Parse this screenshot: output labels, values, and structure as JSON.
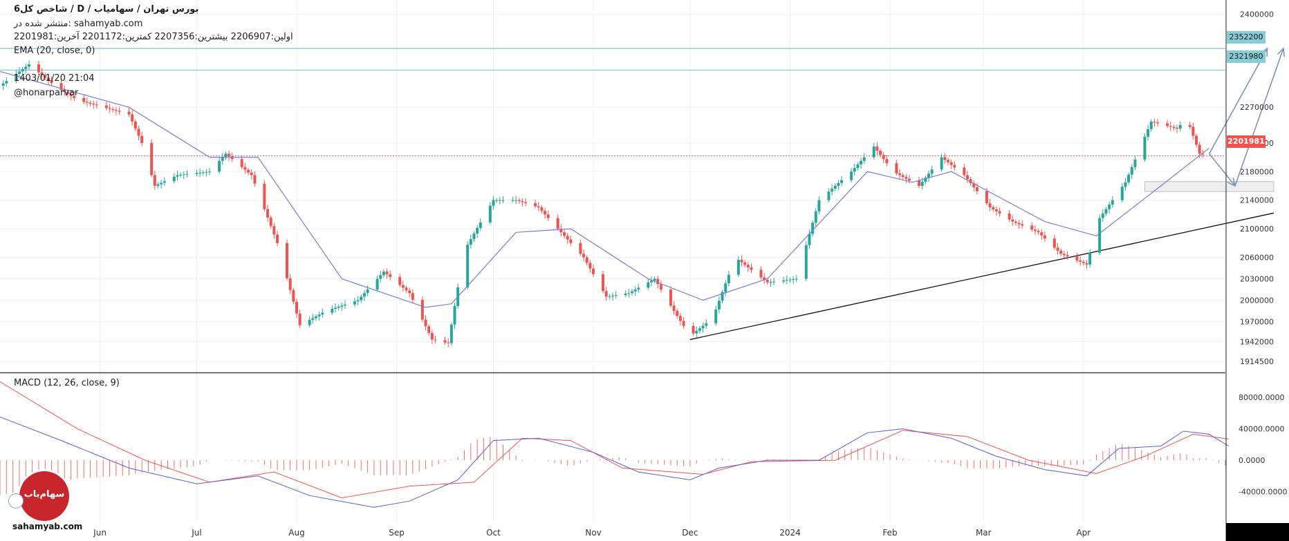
{
  "header": {
    "title": "شاخص کل6 / D / بورس تهران / سهامیاب",
    "published": "منتشر شده در: sahamyab.com",
    "ohlc": "اولین:2206907  بیشترین:2207356  کمترین:2201172  آخرین:2201981",
    "ema_label": "EMA (20, close, 0)",
    "date": "1403/01/20 21:04",
    "user": "@honarparvar"
  },
  "macd": {
    "label": "MACD (12, 26, close, 9)"
  },
  "price_tags": {
    "resistance_high": "2352200",
    "resistance_low": "2321980",
    "last": "2201981"
  },
  "branding": {
    "footer": "sahamyab.com",
    "logo_text": "سهام‌یاب"
  },
  "colors": {
    "up": "#26a69a",
    "down": "#ef5350",
    "ema": "#7b7bd8",
    "macd_line": "#5b5bd8",
    "signal_line": "#ef5350",
    "hist": "#ef5350",
    "resistance": "#7cc7d2",
    "arrow": "#7c93b5",
    "support_zone": "#d8d8d8",
    "trendline": "#111111",
    "background": "#ffffff"
  },
  "chart_data": [
    {
      "type": "candlestick",
      "title": "شاخص کل6",
      "timeframe": "D",
      "ylim": [
        1900000,
        2420000
      ],
      "y_ticks": [
        "2400000",
        "2352200",
        "2321980",
        "2270000",
        "2220000",
        "2180000",
        "2140000",
        "2100000",
        "2060000",
        "2030000",
        "2000000",
        "1970000",
        "1942000",
        "1914500"
      ],
      "y_tick_values": [
        2400000,
        2352200,
        2321980,
        2270000,
        2220000,
        2180000,
        2140000,
        2100000,
        2060000,
        2030000,
        2000000,
        1970000,
        1942000,
        1914500
      ],
      "x_tick_labels": [
        "Jun",
        "Jul",
        "Aug",
        "Sep",
        "Oct",
        "Nov",
        "Dec",
        "2024",
        "Feb",
        "Mar",
        "Apr"
      ],
      "x_tick_dates": [
        "2023-06-01",
        "2023-07-01",
        "2023-08-01",
        "2023-09-01",
        "2023-10-01",
        "2023-11-01",
        "2023-12-01",
        "2024-01-01",
        "2024-02-01",
        "2024-03-01",
        "2024-04-01"
      ],
      "x_range": [
        "2023-05-01",
        "2024-05-15"
      ],
      "close_path": [
        [
          "2023-05-01",
          2300000
        ],
        [
          "2023-05-10",
          2330000
        ],
        [
          "2023-05-18",
          2300000
        ],
        [
          "2023-05-25",
          2280000
        ],
        [
          "2023-06-02",
          2270000
        ],
        [
          "2023-06-10",
          2260000
        ],
        [
          "2023-06-14",
          2220000
        ],
        [
          "2023-06-18",
          2160000
        ],
        [
          "2023-06-25",
          2175000
        ],
        [
          "2023-07-05",
          2180000
        ],
        [
          "2023-07-10",
          2205000
        ],
        [
          "2023-07-18",
          2175000
        ],
        [
          "2023-07-26",
          2080000
        ],
        [
          "2023-08-02",
          1965000
        ],
        [
          "2023-08-10",
          1985000
        ],
        [
          "2023-08-20",
          2000000
        ],
        [
          "2023-08-28",
          2040000
        ],
        [
          "2023-09-05",
          2010000
        ],
        [
          "2023-09-12",
          1945000
        ],
        [
          "2023-09-17",
          1940000
        ],
        [
          "2023-09-22",
          2070000
        ],
        [
          "2023-10-01",
          2140000
        ],
        [
          "2023-10-08",
          2140000
        ],
        [
          "2023-10-15",
          2130000
        ],
        [
          "2023-10-22",
          2095000
        ],
        [
          "2023-10-29",
          2060000
        ],
        [
          "2023-11-05",
          2005000
        ],
        [
          "2023-11-12",
          2010000
        ],
        [
          "2023-11-20",
          2030000
        ],
        [
          "2023-11-26",
          1985000
        ],
        [
          "2023-12-01",
          1950000
        ],
        [
          "2023-12-08",
          1975000
        ],
        [
          "2023-12-15",
          2060000
        ],
        [
          "2023-12-25",
          2025000
        ],
        [
          "2024-01-03",
          2030000
        ],
        [
          "2024-01-10",
          2140000
        ],
        [
          "2024-01-20",
          2180000
        ],
        [
          "2024-01-27",
          2215000
        ],
        [
          "2024-02-02",
          2180000
        ],
        [
          "2024-02-10",
          2160000
        ],
        [
          "2024-02-17",
          2200000
        ],
        [
          "2024-02-24",
          2175000
        ],
        [
          "2024-03-03",
          2130000
        ],
        [
          "2024-03-10",
          2110000
        ],
        [
          "2024-03-18",
          2095000
        ],
        [
          "2024-03-25",
          2065000
        ],
        [
          "2024-04-02",
          2050000
        ],
        [
          "2024-04-06",
          2115000
        ],
        [
          "2024-04-14",
          2165000
        ],
        [
          "2024-04-22",
          2250000
        ],
        [
          "2024-04-30",
          2240000
        ],
        [
          "2024-05-03",
          2255000
        ],
        [
          "2024-05-07",
          2205000
        ],
        [
          "2024-05-10",
          2201981
        ]
      ],
      "ema20_path": [
        [
          "2023-05-01",
          2320000
        ],
        [
          "2023-06-10",
          2270000
        ],
        [
          "2023-07-05",
          2200000
        ],
        [
          "2023-07-20",
          2200000
        ],
        [
          "2023-08-15",
          2030000
        ],
        [
          "2023-09-10",
          1990000
        ],
        [
          "2023-09-18",
          1995000
        ],
        [
          "2023-10-08",
          2095000
        ],
        [
          "2023-10-25",
          2100000
        ],
        [
          "2023-11-18",
          2030000
        ],
        [
          "2023-12-05",
          2000000
        ],
        [
          "2023-12-25",
          2030000
        ],
        [
          "2024-01-25",
          2180000
        ],
        [
          "2024-02-08",
          2165000
        ],
        [
          "2024-02-20",
          2180000
        ],
        [
          "2024-03-20",
          2110000
        ],
        [
          "2024-04-05",
          2090000
        ],
        [
          "2024-04-25",
          2160000
        ],
        [
          "2024-05-10",
          2213000
        ]
      ],
      "resistance_levels": [
        2352200,
        2321980
      ],
      "last_price": 2201981,
      "trendline": [
        [
          "2023-12-01",
          1945000
        ],
        [
          "2024-05-30",
          2122000
        ]
      ],
      "support_zone": {
        "from_date": "2024-04-20",
        "to_date": "2024-05-30",
        "low": 2152000,
        "high": 2166000
      },
      "projection_arrows": [
        [
          [
            "2024-05-10",
            2205000
          ],
          [
            "2024-05-18",
            2160000
          ]
        ],
        [
          [
            "2024-05-10",
            2205000
          ],
          [
            "2024-05-28",
            2352200
          ]
        ],
        [
          [
            "2024-05-18",
            2160000
          ],
          [
            "2024-06-02",
            2352200
          ]
        ]
      ]
    },
    {
      "type": "line",
      "title": "MACD (12, 26, close, 9)",
      "ylim": [
        -80000,
        110000
      ],
      "y_ticks": [
        "80000.0000",
        "40000.0000",
        "0.0000",
        "-40000.0000"
      ],
      "y_tick_values": [
        80000,
        40000,
        0,
        -40000
      ],
      "macd_path": [
        [
          "2023-05-01",
          55000
        ],
        [
          "2023-05-20",
          25000
        ],
        [
          "2023-06-10",
          -10000
        ],
        [
          "2023-07-01",
          -30000
        ],
        [
          "2023-07-20",
          -20000
        ],
        [
          "2023-08-05",
          -45000
        ],
        [
          "2023-08-25",
          -60000
        ],
        [
          "2023-09-05",
          -52000
        ],
        [
          "2023-09-20",
          -25000
        ],
        [
          "2023-10-01",
          25000
        ],
        [
          "2023-10-15",
          28000
        ],
        [
          "2023-11-01",
          10000
        ],
        [
          "2023-11-15",
          -15000
        ],
        [
          "2023-12-01",
          -25000
        ],
        [
          "2023-12-10",
          -10000
        ],
        [
          "2023-12-25",
          0
        ],
        [
          "2024-01-10",
          0
        ],
        [
          "2024-01-25",
          35000
        ],
        [
          "2024-02-05",
          40000
        ],
        [
          "2024-02-20",
          28000
        ],
        [
          "2024-03-05",
          5000
        ],
        [
          "2024-03-20",
          -12000
        ],
        [
          "2024-04-02",
          -20000
        ],
        [
          "2024-04-12",
          15000
        ],
        [
          "2024-04-25",
          18000
        ],
        [
          "2024-05-02",
          37000
        ],
        [
          "2024-05-10",
          33000
        ],
        [
          "2024-05-16",
          18000
        ]
      ],
      "signal_path": [
        [
          "2023-05-01",
          100000
        ],
        [
          "2023-05-25",
          40000
        ],
        [
          "2023-06-15",
          0
        ],
        [
          "2023-07-05",
          -28000
        ],
        [
          "2023-07-25",
          -15000
        ],
        [
          "2023-08-15",
          -48000
        ],
        [
          "2023-09-05",
          -33000
        ],
        [
          "2023-09-25",
          -28000
        ],
        [
          "2023-10-10",
          28000
        ],
        [
          "2023-10-25",
          25000
        ],
        [
          "2023-11-10",
          -10000
        ],
        [
          "2023-12-05",
          -18000
        ],
        [
          "2023-12-20",
          -2000
        ],
        [
          "2024-01-15",
          0
        ],
        [
          "2024-02-05",
          38000
        ],
        [
          "2024-02-25",
          30000
        ],
        [
          "2024-03-15",
          0
        ],
        [
          "2024-04-05",
          -17000
        ],
        [
          "2024-04-20",
          5000
        ],
        [
          "2024-05-05",
          33000
        ],
        [
          "2024-05-16",
          27000
        ]
      ],
      "histogram_range": [
        "2023-05-01",
        "2024-05-16"
      ]
    }
  ]
}
